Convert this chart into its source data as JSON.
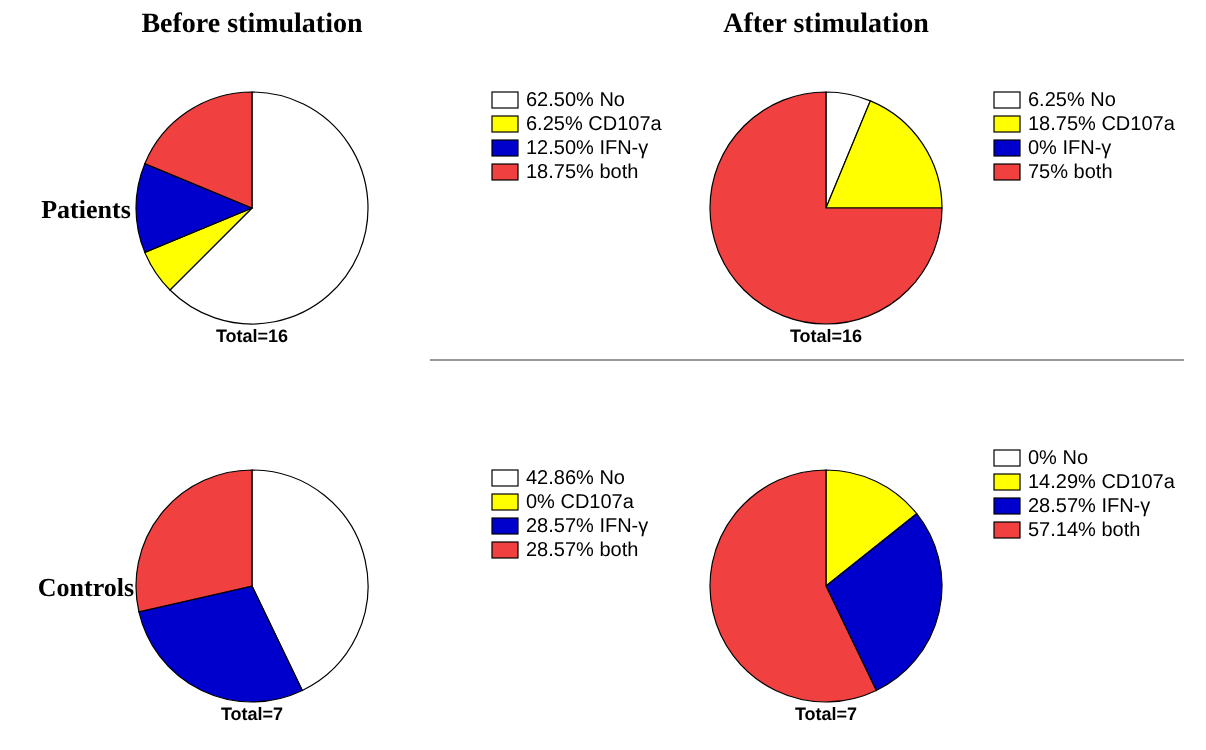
{
  "chart_data": [
    {
      "type": "pie",
      "title": "Before stimulation",
      "ylabel": "Patients",
      "categories": [
        "No",
        "CD107a",
        "IFN-γ",
        "both"
      ],
      "values": [
        62.5,
        6.25,
        12.5,
        18.75
      ],
      "value_labels": [
        "62.50%",
        "6.25%",
        "12.50%",
        "18.75%"
      ],
      "colors": [
        "#ffffff",
        "#ffff00",
        "#0000cc",
        "#f04040"
      ],
      "legend": "right",
      "annotations": [
        "Total=16"
      ]
    },
    {
      "type": "pie",
      "title": "After stimulation",
      "categories": [
        "No",
        "CD107a",
        "IFN-γ",
        "both"
      ],
      "values": [
        6.25,
        18.75,
        0,
        75
      ],
      "value_labels": [
        "6.25%",
        "18.75%",
        "0%",
        "75%"
      ],
      "colors": [
        "#ffffff",
        "#ffff00",
        "#0000cc",
        "#f04040"
      ],
      "legend": "right",
      "annotations": [
        "Total=16"
      ]
    },
    {
      "type": "pie",
      "ylabel": "Controls",
      "categories": [
        "No",
        "CD107a",
        "IFN-γ",
        "both"
      ],
      "values": [
        42.86,
        0,
        28.57,
        28.57
      ],
      "value_labels": [
        "42.86%",
        "0%",
        "28.57%",
        "28.57%"
      ],
      "colors": [
        "#ffffff",
        "#ffff00",
        "#0000cc",
        "#f04040"
      ],
      "legend": "right",
      "annotations": [
        "Total=7"
      ]
    },
    {
      "type": "pie",
      "categories": [
        "No",
        "CD107a",
        "IFN-γ",
        "both"
      ],
      "values": [
        0,
        14.29,
        28.57,
        57.14
      ],
      "value_labels": [
        "0%",
        "14.29%",
        "28.57%",
        "57.14%"
      ],
      "colors": [
        "#ffffff",
        "#ffff00",
        "#0000cc",
        "#f04040"
      ],
      "legend": "right",
      "annotations": [
        "Total=7"
      ]
    }
  ]
}
